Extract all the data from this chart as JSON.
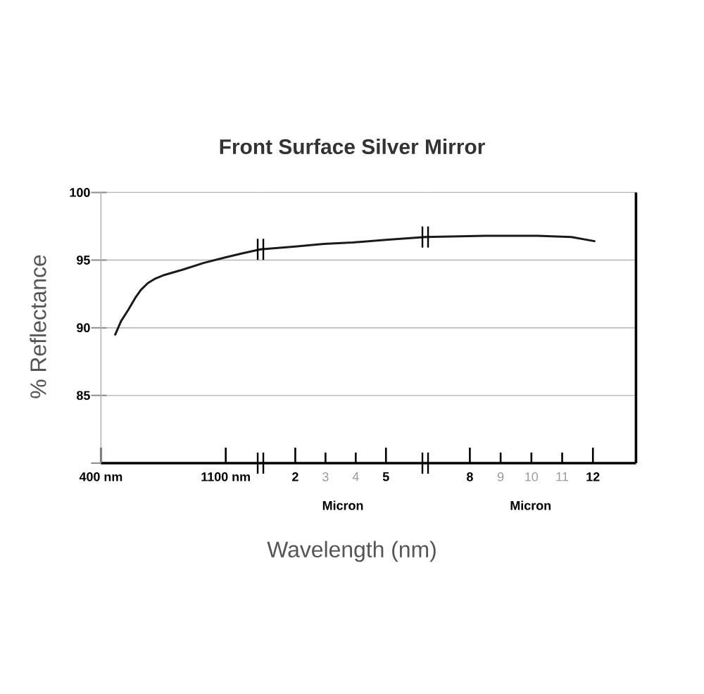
{
  "chart_data": [
    {
      "type": "line",
      "title": "Front Surface Silver Mirror",
      "xlabel": "Wavelength (nm)",
      "ylabel": "% Reflectance",
      "x": [
        480,
        513,
        552,
        592,
        624,
        663,
        700,
        755,
        860,
        979,
        1097,
        1192,
        1295
      ],
      "series": [
        {
          "color": "#1a1a1a",
          "values": [
            89.5,
            90.5,
            91.3,
            92.2,
            92.8,
            93.3,
            93.6,
            93.9,
            94.3,
            94.8,
            95.2,
            95.5,
            95.8
          ]
        }
      ],
      "xlim": [
        400,
        1295
      ],
      "xticks": [
        {
          "value": 400,
          "label": "400 nm"
        },
        {
          "value": 1100,
          "label": "1100 nm"
        }
      ],
      "ylim": [
        80,
        100
      ],
      "yticks": [
        {
          "value": 80,
          "label": null
        },
        85,
        90,
        95,
        100
      ],
      "grid": "y"
    },
    {
      "type": "line",
      "xlabel": "Micron",
      "x": [
        0.85,
        2,
        2.95,
        3.9,
        5,
        6.3
      ],
      "series": [
        {
          "color": "#1a1a1a",
          "values": [
            95.8,
            96.0,
            96.2,
            96.3,
            96.5,
            96.7
          ]
        }
      ],
      "xlim": [
        0.85,
        6.3
      ],
      "xticks": [
        2,
        3,
        4,
        5
      ],
      "ylim": [
        80,
        100
      ],
      "yticks": [
        85,
        90,
        95,
        100
      ],
      "grid": "y",
      "tick_labels": "x"
    },
    {
      "type": "line",
      "xlabel": "Micron",
      "x": [
        6.55,
        8.5,
        10.2,
        11.3,
        12.05
      ],
      "series": [
        {
          "color": "#1a1a1a",
          "values": [
            96.7,
            96.8,
            96.8,
            96.7,
            96.4
          ]
        }
      ],
      "xlim": [
        6.55,
        13.4
      ],
      "xticks": [
        8,
        9,
        10,
        11,
        12
      ],
      "ylim": [
        80,
        100
      ],
      "yticks": [
        85,
        90,
        95,
        100
      ],
      "grid": "y",
      "tick_labels": "x"
    }
  ]
}
